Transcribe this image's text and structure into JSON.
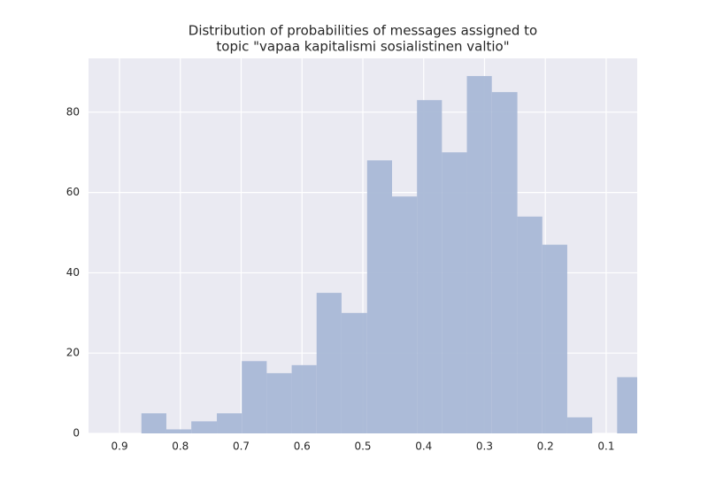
{
  "chart_data": {
    "type": "histogram",
    "title": [
      "Distribution of probabilities of messages assigned to",
      "topic \"vapaa kapitalismi sosialistinen valtio\""
    ],
    "bins": [
      0.041,
      0.082,
      0.123,
      0.164,
      0.205,
      0.246,
      0.288,
      0.329,
      0.37,
      0.411,
      0.452,
      0.493,
      0.535,
      0.576,
      0.617,
      0.658,
      0.699,
      0.74,
      0.782,
      0.823,
      0.864
    ],
    "values": [
      14,
      0,
      4,
      47,
      54,
      85,
      89,
      70,
      83,
      59,
      68,
      30,
      35,
      17,
      15,
      18,
      5,
      3,
      1,
      5
    ],
    "color": "#a9b8d6",
    "xlim": [
      0.951,
      0.049
    ],
    "xticks": [
      0.9,
      0.8,
      0.7,
      0.6,
      0.5,
      0.4,
      0.3,
      0.2,
      0.1
    ],
    "ylim": [
      0,
      93.4
    ],
    "yticks": [
      0,
      20,
      40,
      60,
      80
    ],
    "grid": true
  }
}
